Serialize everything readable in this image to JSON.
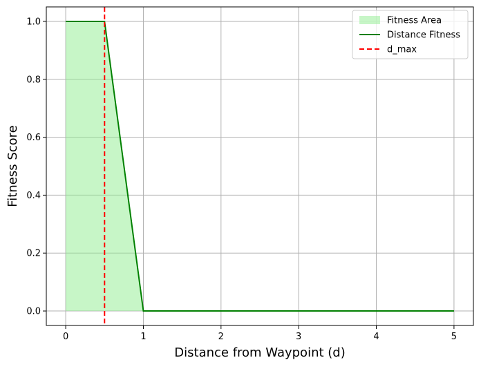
{
  "chart_data": {
    "type": "line",
    "title": "",
    "xlabel": "Distance from Waypoint (d)",
    "ylabel": "Fitness Score",
    "xlim": [
      -0.25,
      5.25
    ],
    "ylim": [
      -0.05,
      1.05
    ],
    "xticks": [
      0,
      1,
      2,
      3,
      4,
      5
    ],
    "xtick_labels": [
      "0",
      "1",
      "2",
      "3",
      "4",
      "5"
    ],
    "yticks": [
      0.0,
      0.2,
      0.4,
      0.6,
      0.8,
      1.0
    ],
    "ytick_labels": [
      "0.0",
      "0.2",
      "0.4",
      "0.6",
      "0.8",
      "1.0"
    ],
    "grid": true,
    "legend_position": "top-right",
    "series": [
      {
        "name": "Fitness Area",
        "kind": "area",
        "color": "#90ee90",
        "x": [
          0,
          0.5,
          1,
          5
        ],
        "y": [
          1.0,
          1.0,
          0.0,
          0.0
        ]
      },
      {
        "name": "Distance Fitness",
        "kind": "line",
        "color": "#008000",
        "x": [
          0,
          0.5,
          1,
          5
        ],
        "y": [
          1.0,
          1.0,
          0.0,
          0.0
        ]
      },
      {
        "name": "d_max",
        "kind": "vline",
        "color": "#ff0000",
        "style": "dashed",
        "x": 0.5
      }
    ]
  }
}
